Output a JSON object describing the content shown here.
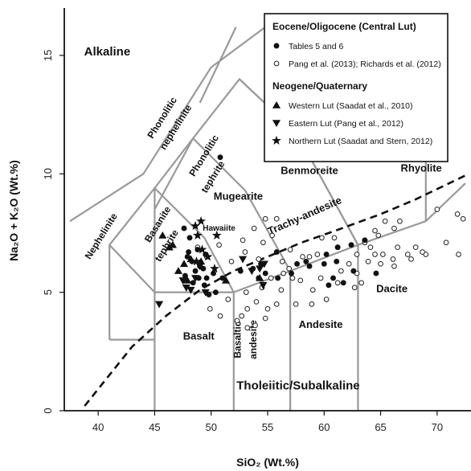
{
  "chart_data": {
    "type": "scatter",
    "xlabel": "SiO₂ (Wt.%)",
    "ylabel": "Na₂O + K₂O (Wt.%)",
    "xlim": [
      37,
      73
    ],
    "ylim": [
      0,
      17
    ],
    "x_ticks": [
      "40",
      "45",
      "50",
      "55",
      "60",
      "65",
      "70"
    ],
    "x_tick_values": [
      40,
      45,
      50,
      55,
      60,
      65,
      70
    ],
    "y_ticks": [
      "0",
      "5",
      "10",
      "15"
    ],
    "y_tick_values": [
      0,
      5,
      10,
      15
    ],
    "grid": false,
    "legend_position": "top-right",
    "legend": {
      "groups": [
        {
          "heading": "Eocene/Oligocene (Central Lut)",
          "entries": [
            {
              "label": "Tables 5 and 6",
              "marker": "filled-circle"
            },
            {
              "label": "Pang et al. (2013); Richards et al. (2012)",
              "marker": "open-circle"
            }
          ]
        },
        {
          "heading": "Neogene/Quaternary",
          "entries": [
            {
              "label": "Western Lut (Saadat et al., 2010)",
              "marker": "triangle-up"
            },
            {
              "label": "Eastern Lut (Pang et al., 2012)",
              "marker": "triangle-down"
            },
            {
              "label": "Northern Lut (Saadat and Stern, 2012)",
              "marker": "star"
            }
          ]
        }
      ]
    },
    "field_labels": [
      {
        "text": "Alkaline",
        "x": 40.8,
        "y": 15.0,
        "rotate": 0,
        "size": 15
      },
      {
        "text": "Phonolitic",
        "x": 45.9,
        "y": 12.3,
        "rotate": -58,
        "size": 12
      },
      {
        "text": "nephelinite",
        "x": 47.1,
        "y": 11.9,
        "rotate": -58,
        "size": 12
      },
      {
        "text": "Phonolitic",
        "x": 49.6,
        "y": 10.7,
        "rotate": -58,
        "size": 12
      },
      {
        "text": "tephrite",
        "x": 50.4,
        "y": 9.8,
        "rotate": -58,
        "size": 12
      },
      {
        "text": "Benmoreite",
        "x": 58.7,
        "y": 10.0,
        "rotate": 0,
        "size": 13
      },
      {
        "text": "Rhyolite",
        "x": 68.6,
        "y": 10.1,
        "rotate": 0,
        "size": 13
      },
      {
        "text": "Mugearite",
        "x": 52.4,
        "y": 8.9,
        "rotate": 0,
        "size": 13
      },
      {
        "text": "Trachy-andesite",
        "x": 58.4,
        "y": 8.1,
        "rotate": -24,
        "size": 13
      },
      {
        "text": "Nephelinite",
        "x": 40.5,
        "y": 7.3,
        "rotate": -58,
        "size": 12
      },
      {
        "text": "Basanite",
        "x": 45.5,
        "y": 7.8,
        "rotate": -58,
        "size": 12
      },
      {
        "text": "tephrite",
        "x": 46.3,
        "y": 6.9,
        "rotate": -58,
        "size": 12
      },
      {
        "text": "Hawaiite",
        "x": 50.7,
        "y": 7.6,
        "rotate": 0,
        "size": 10
      },
      {
        "text": "Dacite",
        "x": 66.0,
        "y": 5.0,
        "rotate": 0,
        "size": 13
      },
      {
        "text": "Basalt",
        "x": 48.9,
        "y": 3.0,
        "rotate": 0,
        "size": 13
      },
      {
        "text": "Basaltic",
        "x": 52.6,
        "y": 3.0,
        "rotate": -90,
        "size": 12
      },
      {
        "text": "andesite",
        "x": 54.0,
        "y": 3.0,
        "rotate": -90,
        "size": 12
      },
      {
        "text": "Andesite",
        "x": 59.7,
        "y": 3.5,
        "rotate": 0,
        "size": 13
      },
      {
        "text": "Tholeiitic/Subalkaline",
        "x": 57.7,
        "y": 0.9,
        "rotate": 0,
        "size": 15
      }
    ],
    "field_boundaries": [
      [
        [
          41,
          3
        ],
        [
          41,
          7
        ],
        [
          45,
          9.4
        ],
        [
          48.4,
          11.5
        ],
        [
          52.5,
          14
        ],
        [
          57.6,
          11.7
        ],
        [
          63,
          7
        ]
      ],
      [
        [
          45,
          3
        ],
        [
          45,
          5
        ],
        [
          52,
          5
        ],
        [
          57,
          5.9
        ],
        [
          63,
          7
        ],
        [
          69,
          8
        ],
        [
          72.5,
          9.6
        ]
      ],
      [
        [
          41,
          7
        ],
        [
          45,
          5
        ]
      ],
      [
        [
          45,
          5
        ],
        [
          45,
          9.4
        ]
      ],
      [
        [
          52,
          5
        ],
        [
          49.4,
          7.3
        ],
        [
          45,
          9.4
        ]
      ],
      [
        [
          52,
          5
        ],
        [
          52,
          0
        ]
      ],
      [
        [
          57,
          5.9
        ],
        [
          53,
          9.3
        ],
        [
          48.4,
          11.5
        ]
      ],
      [
        [
          57,
          5.9
        ],
        [
          57,
          0
        ]
      ],
      [
        [
          63,
          7
        ],
        [
          57.6,
          11.7
        ],
        [
          52.5,
          14
        ]
      ],
      [
        [
          63,
          7
        ],
        [
          63,
          0
        ]
      ],
      [
        [
          69,
          8
        ],
        [
          69,
          13
        ]
      ],
      [
        [
          45,
          3
        ],
        [
          45,
          0
        ]
      ],
      [
        [
          41,
          3
        ],
        [
          45,
          3
        ]
      ],
      [
        [
          37.5,
          8.0
        ],
        [
          44,
          10.0
        ],
        [
          50,
          14.5
        ],
        [
          54.8,
          16.2
        ]
      ],
      [
        [
          49,
          13.0
        ],
        [
          52.2,
          16.2
        ]
      ],
      [
        [
          45,
          8.5
        ],
        [
          48.4,
          11.5
        ]
      ]
    ],
    "series": [
      {
        "name": "Tables 5 and 6",
        "marker": "filled-circle",
        "points": [
          [
            50.8,
            10.7
          ],
          [
            47.6,
            7.7
          ],
          [
            48.1,
            7.3
          ],
          [
            48.0,
            6.7
          ],
          [
            48.8,
            6.8
          ],
          [
            49.5,
            6.6
          ],
          [
            47.9,
            6.5
          ],
          [
            48.3,
            6.3
          ],
          [
            49.0,
            6.1
          ],
          [
            49.3,
            6.0
          ],
          [
            48.6,
            5.9
          ],
          [
            47.7,
            5.7
          ],
          [
            48.9,
            5.6
          ],
          [
            49.6,
            5.6
          ],
          [
            48.4,
            5.4
          ],
          [
            49.4,
            5.3
          ],
          [
            50.2,
            5.8
          ],
          [
            51.0,
            5.6
          ],
          [
            52.6,
            5.9
          ],
          [
            53.7,
            6.0
          ],
          [
            54.4,
            6.2
          ],
          [
            54.8,
            5.8
          ],
          [
            55.9,
            5.6
          ],
          [
            54.2,
            5.6
          ],
          [
            57.1,
            5.8
          ],
          [
            58.7,
            6.1
          ],
          [
            60.0,
            6.2
          ],
          [
            60.2,
            6.6
          ],
          [
            61.1,
            6.3
          ],
          [
            62.6,
            5.9
          ],
          [
            63.6,
            7.2
          ],
          [
            62.4,
            7.0
          ],
          [
            64.6,
            5.8
          ],
          [
            61.7,
            5.4
          ],
          [
            60.8,
            5.6
          ],
          [
            57.6,
            6.2
          ],
          [
            58.4,
            6.3
          ],
          [
            55.8,
            6.7
          ],
          [
            50.4,
            5.0
          ],
          [
            49.8,
            4.9
          ],
          [
            61.2,
            6.9
          ],
          [
            60.4,
            5.3
          ]
        ]
      },
      {
        "name": "Pang et al. (2013); Richards et al. (2012)",
        "marker": "open-circle",
        "points": [
          [
            57.0,
            6.8
          ],
          [
            58.7,
            6.5
          ],
          [
            59.4,
            6.6
          ],
          [
            59.8,
            7.3
          ],
          [
            61.2,
            6.9
          ],
          [
            62.9,
            6.6
          ],
          [
            63.6,
            7.1
          ],
          [
            64.5,
            6.6
          ],
          [
            64.1,
            6.9
          ],
          [
            65.2,
            6.6
          ],
          [
            66.1,
            6.4
          ],
          [
            66.5,
            6.9
          ],
          [
            67.4,
            6.6
          ],
          [
            68.1,
            6.9
          ],
          [
            69.0,
            6.6
          ],
          [
            70.8,
            7.1
          ],
          [
            71.8,
            8.3
          ],
          [
            72.3,
            8.1
          ],
          [
            71.9,
            6.6
          ],
          [
            70.0,
            8.5
          ],
          [
            66.7,
            8.0
          ],
          [
            65.4,
            8.0
          ],
          [
            66.2,
            7.7
          ],
          [
            64.5,
            7.6
          ],
          [
            55.8,
            8.1
          ],
          [
            54.8,
            8.1
          ],
          [
            52.8,
            7.2
          ],
          [
            53.8,
            7.7
          ],
          [
            55.4,
            7.4
          ],
          [
            54.6,
            7.1
          ],
          [
            56.9,
            6.0
          ],
          [
            56.4,
            5.8
          ],
          [
            57.2,
            5.6
          ],
          [
            57.9,
            5.5
          ],
          [
            58.1,
            6.5
          ],
          [
            59.0,
            5.1
          ],
          [
            59.7,
            5.6
          ],
          [
            61.2,
            5.4
          ],
          [
            62.2,
            6.2
          ],
          [
            62.9,
            5.8
          ],
          [
            63.3,
            5.4
          ],
          [
            60.2,
            4.7
          ],
          [
            57.5,
            4.5
          ],
          [
            58.9,
            4.5
          ],
          [
            56.2,
            5.1
          ],
          [
            55.8,
            4.5
          ],
          [
            54.8,
            3.9
          ],
          [
            53.9,
            3.6
          ],
          [
            53.2,
            3.5
          ],
          [
            52.3,
            3.8
          ],
          [
            52.7,
            4.0
          ],
          [
            53.2,
            4.3
          ],
          [
            54.0,
            4.6
          ],
          [
            54.5,
            5.2
          ],
          [
            55.0,
            4.3
          ],
          [
            55.3,
            5.6
          ],
          [
            56.3,
            6.3
          ],
          [
            54.2,
            6.4
          ],
          [
            53.1,
            5.0
          ],
          [
            51.5,
            4.7
          ],
          [
            50.8,
            4.0
          ],
          [
            49.9,
            4.3
          ],
          [
            49.6,
            6.5
          ],
          [
            48.8,
            6.9
          ],
          [
            50.7,
            7.0
          ],
          [
            51.8,
            6.3
          ],
          [
            53.0,
            6.7
          ],
          [
            60.9,
            7.3
          ],
          [
            61.5,
            5.9
          ],
          [
            62.7,
            5.2
          ],
          [
            63.9,
            6.3
          ],
          [
            64.8,
            7.4
          ],
          [
            65.0,
            6.2
          ],
          [
            66.2,
            6.1
          ],
          [
            67.7,
            6.4
          ],
          [
            68.7,
            6.7
          ]
        ]
      },
      {
        "name": "Western Lut (Saadat et al., 2010)",
        "marker": "triangle-up",
        "points": [
          [
            45.7,
            7.4
          ],
          [
            46.3,
            6.9
          ],
          [
            46.6,
            7.0
          ],
          [
            47.1,
            5.9
          ],
          [
            47.6,
            6.2
          ],
          [
            48.2,
            6.4
          ],
          [
            47.9,
            5.5
          ],
          [
            49.1,
            6.3
          ],
          [
            51.3,
            5.5
          ],
          [
            54.3,
            5.6
          ]
        ]
      },
      {
        "name": "Eastern Lut (Pang et al., 2012)",
        "marker": "triangle-down",
        "points": [
          [
            45.4,
            4.5
          ],
          [
            47.5,
            5.5
          ],
          [
            47.8,
            5.2
          ],
          [
            48.2,
            5.1
          ],
          [
            49.0,
            6.1
          ],
          [
            48.6,
            5.6
          ],
          [
            49.5,
            5.0
          ],
          [
            52.8,
            6.4
          ],
          [
            54.6,
            5.3
          ],
          [
            54.7,
            6.2
          ],
          [
            54.3,
            6.0
          ],
          [
            53.6,
            5.9
          ]
        ]
      },
      {
        "name": "Northern Lut (Saadat and Stern, 2012)",
        "marker": "star",
        "points": [
          [
            48.6,
            7.8
          ],
          [
            49.1,
            8.0
          ],
          [
            48.8,
            7.4
          ],
          [
            50.5,
            7.4
          ],
          [
            49.7,
            6.5
          ],
          [
            49.2,
            6.8
          ],
          [
            48.7,
            6.3
          ],
          [
            50.3,
            6.0
          ]
        ]
      }
    ],
    "boundary_line": {
      "style": "dashed",
      "points": [
        [
          38.8,
          0.2
        ],
        [
          43,
          2.7
        ],
        [
          46,
          4.0
        ],
        [
          49,
          5.1
        ],
        [
          52,
          5.9
        ],
        [
          55,
          6.5
        ],
        [
          58,
          7.1
        ],
        [
          61,
          7.6
        ],
        [
          65,
          8.3
        ],
        [
          68,
          8.9
        ],
        [
          72.8,
          10.0
        ]
      ]
    }
  }
}
